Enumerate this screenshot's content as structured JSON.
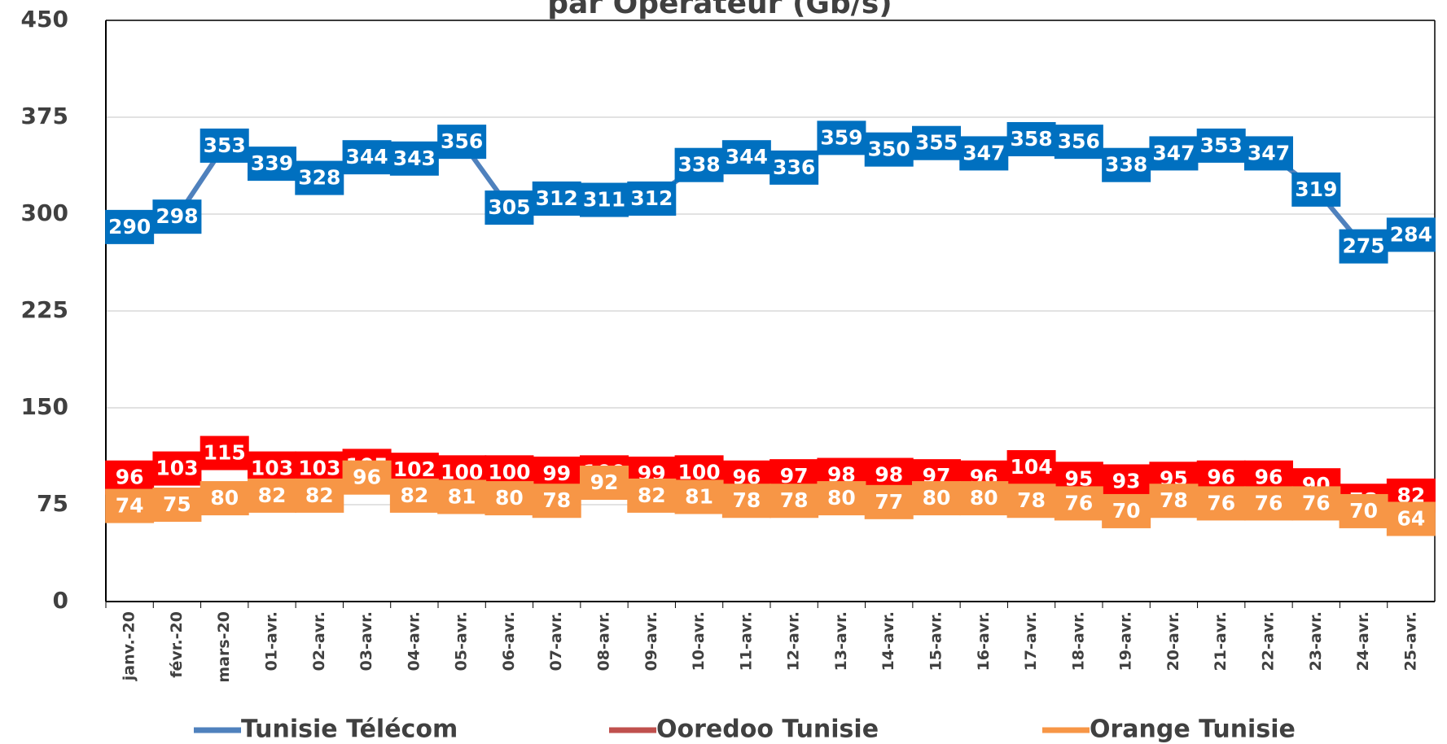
{
  "chart_data": {
    "type": "line",
    "title": "par Opérateur (Gb/s)",
    "categories": [
      "janv.-20",
      "févr.-20",
      "mars-20",
      "01-avr.",
      "02-avr.",
      "03-avr.",
      "04-avr.",
      "05-avr.",
      "06-avr.",
      "07-avr.",
      "08-avr.",
      "09-avr.",
      "10-avr.",
      "11-avr.",
      "12-avr.",
      "13-avr.",
      "14-avr.",
      "15-avr.",
      "16-avr.",
      "17-avr.",
      "18-avr.",
      "19-avr.",
      "20-avr.",
      "21-avr.",
      "22-avr.",
      "23-avr.",
      "24-avr.",
      "25-avr."
    ],
    "series": [
      {
        "name": "Tunisie Télécom",
        "color": "#4f81bd",
        "label_color": "#0070c0",
        "values": [
          290,
          298,
          353,
          339,
          328,
          344,
          343,
          356,
          305,
          312,
          311,
          312,
          338,
          344,
          336,
          359,
          350,
          355,
          347,
          358,
          356,
          338,
          347,
          353,
          347,
          319,
          275,
          284
        ]
      },
      {
        "name": "Ooredoo Tunisie",
        "color": "#c0504d",
        "label_color": "#ff0000",
        "values": [
          96,
          103,
          115,
          103,
          103,
          105,
          102,
          100,
          100,
          99,
          100,
          99,
          100,
          96,
          97,
          98,
          98,
          97,
          96,
          104,
          95,
          93,
          95,
          96,
          96,
          90,
          78,
          82
        ]
      },
      {
        "name": "Orange Tunisie",
        "color": "#f79646",
        "label_color": "#f79646",
        "values": [
          74,
          75,
          80,
          82,
          82,
          96,
          82,
          81,
          80,
          78,
          92,
          82,
          81,
          78,
          78,
          80,
          77,
          80,
          80,
          78,
          76,
          70,
          78,
          76,
          76,
          76,
          70,
          64
        ]
      }
    ],
    "ylim": [
      0,
      450
    ],
    "yticks": [
      0,
      75,
      150,
      225,
      300,
      375,
      450
    ],
    "grid": true,
    "legend": "bottom"
  }
}
